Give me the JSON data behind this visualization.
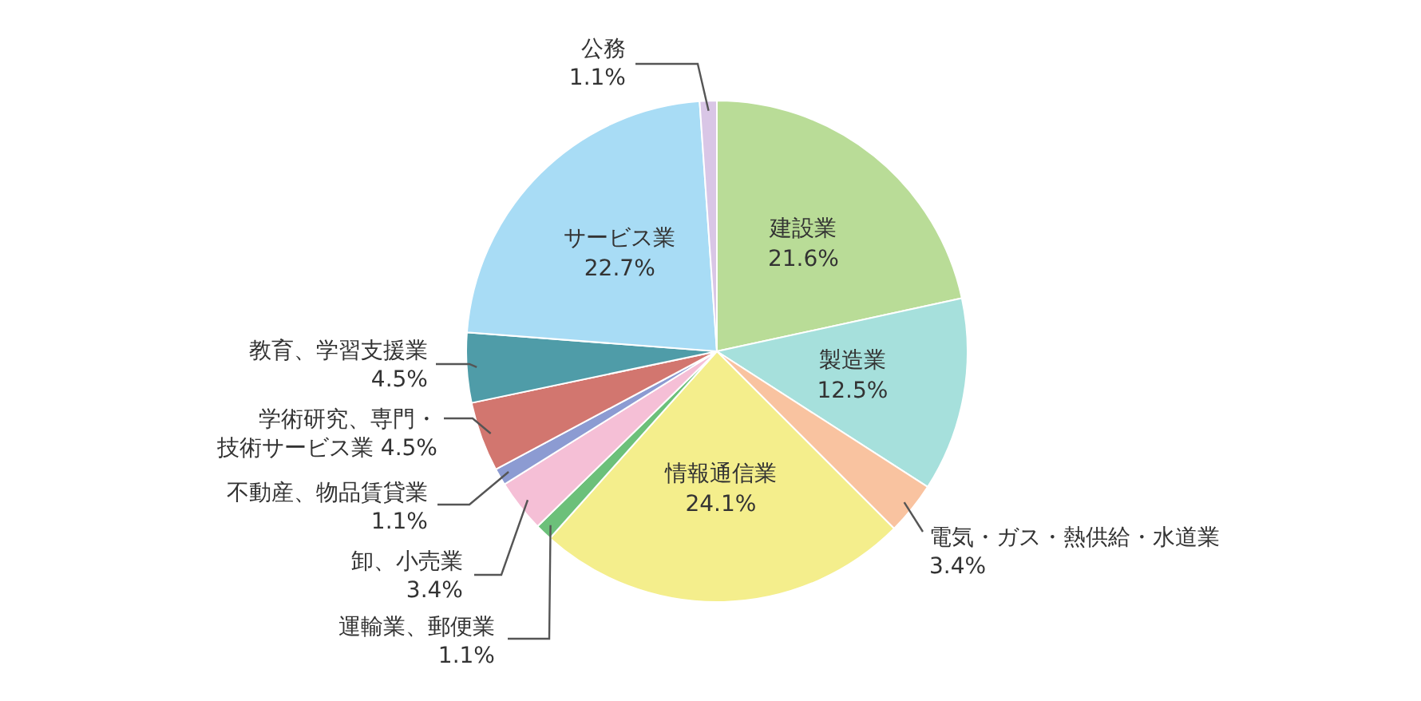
{
  "chart_data": {
    "type": "pie",
    "categories": [
      "建設業",
      "製造業",
      "電気・ガス・熱供給・水道業",
      "情報通信業",
      "運輸業、郵便業",
      "卸、小売業",
      "不動産、物品賃貸業",
      "学術研究、専門・技術サービス業",
      "教育、学習支援業",
      "サービス業",
      "公務"
    ],
    "values": [
      21.6,
      12.5,
      3.4,
      24.1,
      1.1,
      3.4,
      1.1,
      4.5,
      4.5,
      22.7,
      1.1
    ],
    "value_labels": [
      "21.6%",
      "12.5%",
      "3.4%",
      "24.1%",
      "1.1%",
      "3.4%",
      "1.1%",
      "4.5%",
      "4.5%",
      "22.7%",
      "1.1%"
    ],
    "colors": [
      "#b9dc97",
      "#a6e0dc",
      "#f9c3a0",
      "#f4ee8c",
      "#6cc07a",
      "#f5bfd6",
      "#8c9bd2",
      "#d2766f",
      "#4f9ca8",
      "#a8dcf5",
      "#d9c6e6"
    ]
  }
}
